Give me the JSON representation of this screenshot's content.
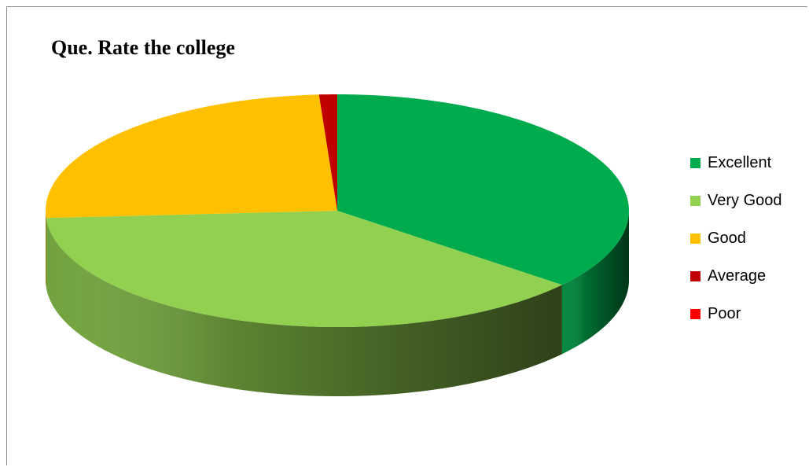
{
  "chart_data": {
    "type": "pie",
    "title": "Que. Rate the college",
    "slices": [
      {
        "label": "Excellent",
        "value": 36,
        "color": "#00AB4E"
      },
      {
        "label": "Very Good",
        "value": 38,
        "color": "#92D050"
      },
      {
        "label": "Good",
        "value": 25,
        "color": "#FFC000"
      },
      {
        "label": "Average",
        "value": 1,
        "color": "#C00000"
      },
      {
        "label": "Poor",
        "value": 0,
        "color": "#FF0000"
      }
    ],
    "start_angle": "top",
    "direction": "clockwise",
    "style": "3d",
    "legend_position": "right"
  }
}
